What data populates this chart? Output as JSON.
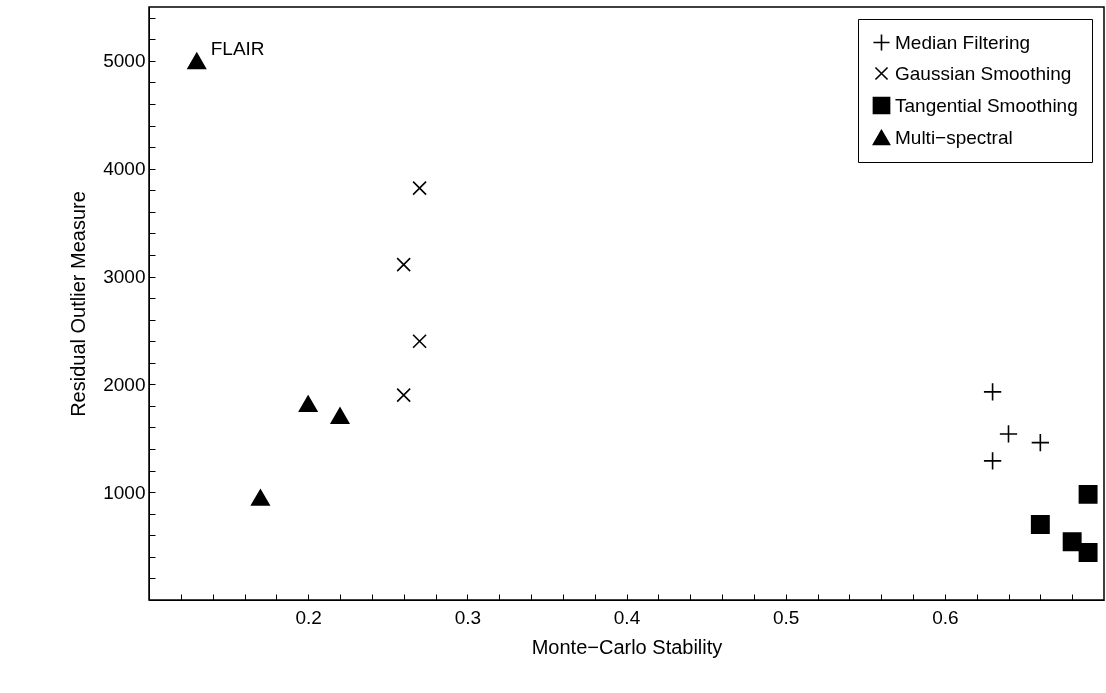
{
  "chart_data": {
    "type": "scatter",
    "xlabel": "Monte−Carlo Stability",
    "ylabel": "Residual Outlier Measure",
    "xlim": [
      0.1,
      0.7
    ],
    "ylim": [
      0,
      5500
    ],
    "xticks": [
      {
        "value": 0.12,
        "label": null
      },
      {
        "value": 0.14,
        "label": null
      },
      {
        "value": 0.16,
        "label": null
      },
      {
        "value": 0.18,
        "label": null
      },
      0.2,
      {
        "value": 0.22,
        "label": null
      },
      {
        "value": 0.24,
        "label": null
      },
      {
        "value": 0.26,
        "label": null
      },
      {
        "value": 0.28,
        "label": null
      },
      0.3,
      {
        "value": 0.32,
        "label": null
      },
      {
        "value": 0.34,
        "label": null
      },
      {
        "value": 0.36,
        "label": null
      },
      {
        "value": 0.38,
        "label": null
      },
      0.4,
      {
        "value": 0.42,
        "label": null
      },
      {
        "value": 0.44,
        "label": null
      },
      {
        "value": 0.46,
        "label": null
      },
      {
        "value": 0.48,
        "label": null
      },
      0.5,
      {
        "value": 0.52,
        "label": null
      },
      {
        "value": 0.54,
        "label": null
      },
      {
        "value": 0.56,
        "label": null
      },
      {
        "value": 0.58,
        "label": null
      },
      0.6,
      {
        "value": 0.62,
        "label": null
      },
      {
        "value": 0.64,
        "label": null
      },
      {
        "value": 0.66,
        "label": null
      },
      {
        "value": 0.68,
        "label": null
      }
    ],
    "yticks": [
      {
        "value": 200,
        "label": null
      },
      {
        "value": 400,
        "label": null
      },
      {
        "value": 600,
        "label": null
      },
      {
        "value": 800,
        "label": null
      },
      1000,
      {
        "value": 1200,
        "label": null
      },
      {
        "value": 1400,
        "label": null
      },
      {
        "value": 1600,
        "label": null
      },
      {
        "value": 1800,
        "label": null
      },
      2000,
      {
        "value": 2200,
        "label": null
      },
      {
        "value": 2400,
        "label": null
      },
      {
        "value": 2600,
        "label": null
      },
      {
        "value": 2800,
        "label": null
      },
      3000,
      {
        "value": 3200,
        "label": null
      },
      {
        "value": 3400,
        "label": null
      },
      {
        "value": 3600,
        "label": null
      },
      {
        "value": 3800,
        "label": null
      },
      4000,
      {
        "value": 4200,
        "label": null
      },
      {
        "value": 4400,
        "label": null
      },
      {
        "value": 4600,
        "label": null
      },
      {
        "value": 4800,
        "label": null
      },
      5000,
      {
        "value": 5200,
        "label": null
      },
      {
        "value": 5400,
        "label": null
      }
    ],
    "legend": "top right",
    "annotations": [
      {
        "text": "FLAIR",
        "x": 0.13,
        "y": 5000
      }
    ],
    "series": [
      {
        "name": "Median Filtering",
        "color": "#000000",
        "marker": "cross",
        "x": [
          0.63,
          0.64,
          0.66,
          0.63
        ],
        "values": [
          1930,
          1540,
          1460,
          1290
        ]
      },
      {
        "name": "Gaussian Smoothing",
        "color": "#000000",
        "marker": "x",
        "x": [
          0.27,
          0.26,
          0.27,
          0.26
        ],
        "values": [
          3820,
          3110,
          2400,
          1900
        ]
      },
      {
        "name": "Tangential Smoothing",
        "color": "#000000",
        "marker": "square",
        "x": [
          0.69,
          0.66,
          0.68,
          0.69
        ],
        "values": [
          980,
          700,
          540,
          440
        ]
      },
      {
        "name": "Multi−spectral",
        "color": "#000000",
        "marker": "triangle",
        "x": [
          0.13,
          0.17,
          0.2,
          0.22
        ],
        "values": [
          5000,
          950,
          1820,
          1710
        ]
      }
    ]
  }
}
